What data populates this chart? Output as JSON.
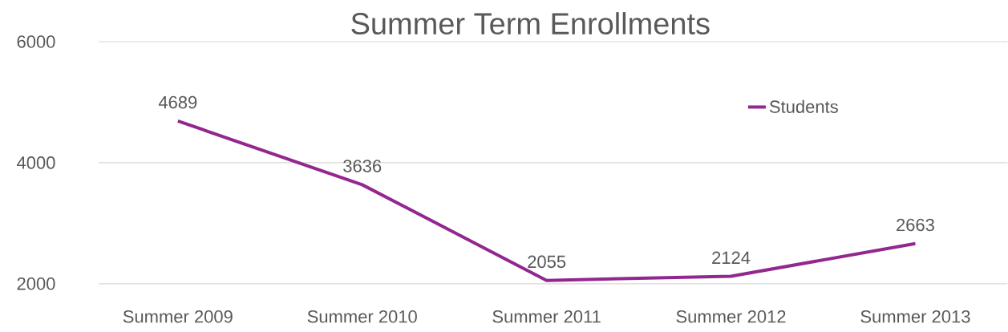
{
  "chart_data": {
    "type": "line",
    "title": "Summer Term Enrollments",
    "categories": [
      "Summer 2009",
      "Summer 2010",
      "Summer 2011",
      "Summer 2012",
      "Summer 2013"
    ],
    "series": [
      {
        "name": "Students",
        "color": "#92278f",
        "values": [
          4689,
          3636,
          2055,
          2124,
          2663
        ]
      }
    ],
    "ylim": [
      2000,
      6000
    ],
    "yticks": [
      2000,
      4000,
      6000
    ],
    "grid": "y",
    "legend": "top right",
    "data_labels": true,
    "marker": "none",
    "line_style": "solid"
  }
}
